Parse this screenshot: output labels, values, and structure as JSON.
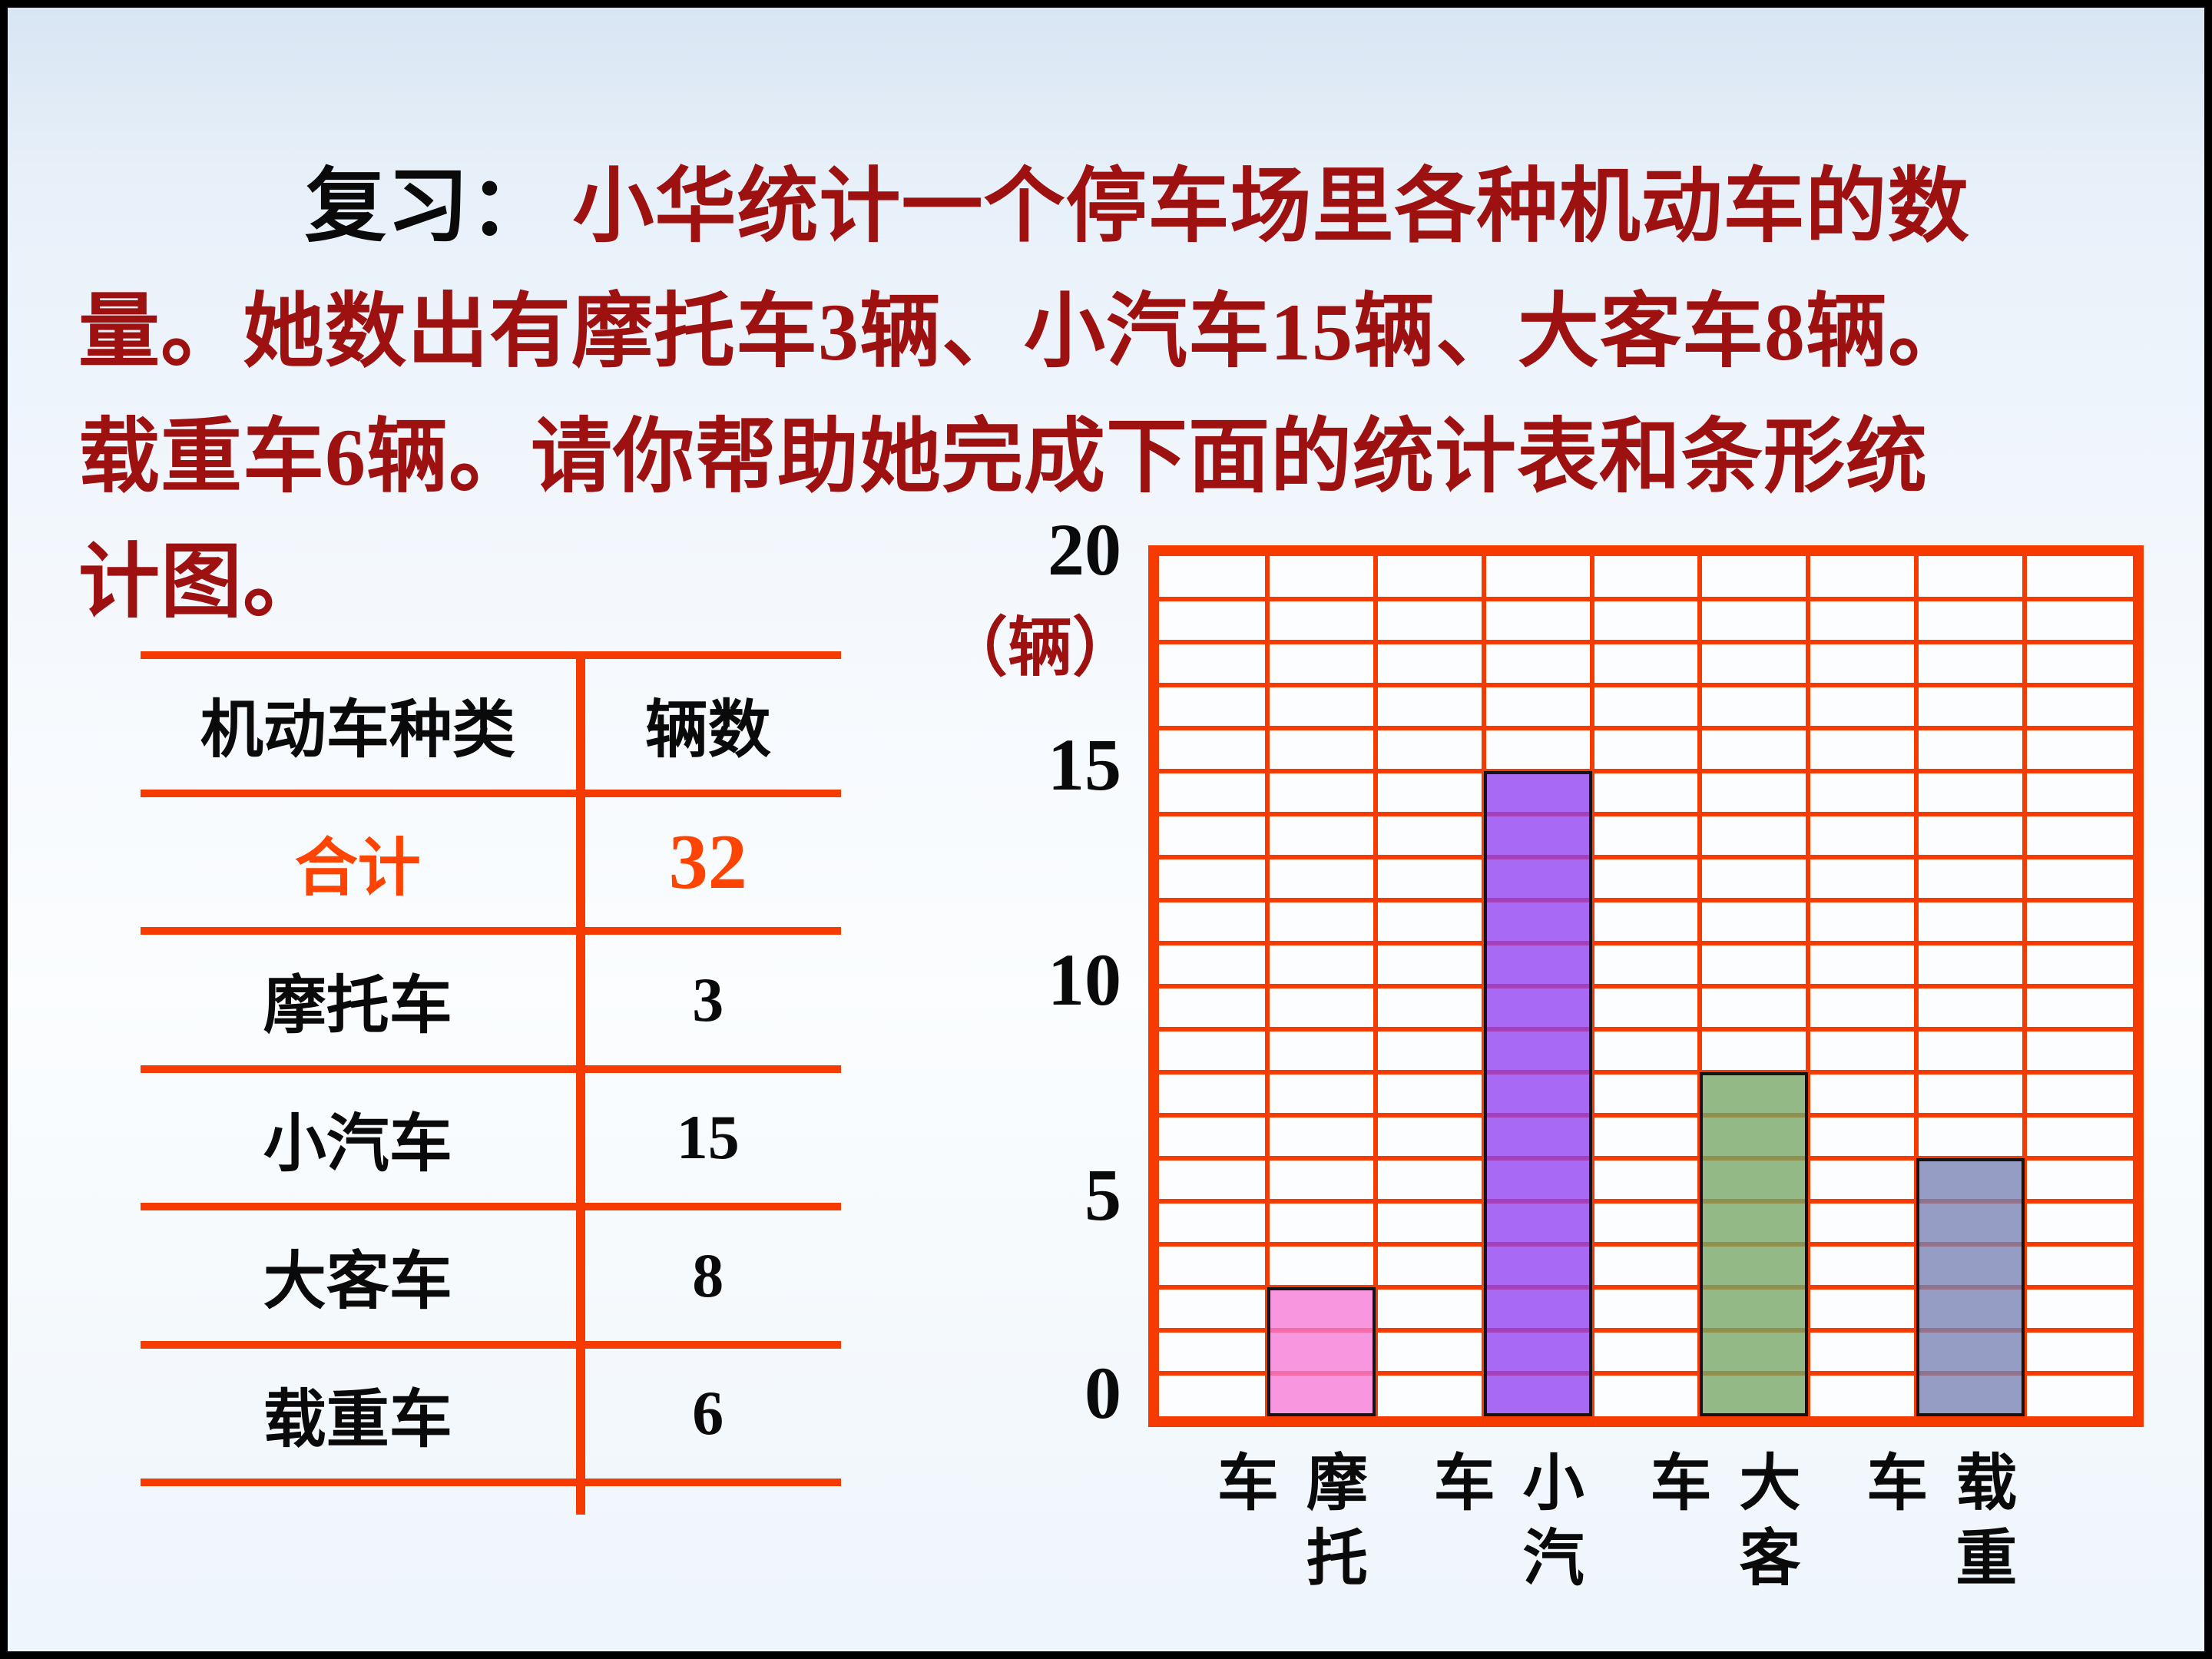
{
  "paragraph": {
    "prefix": "复习：",
    "line1_rest": " 小华统计一个停车场里各种机动车的数",
    "line2": "量。她数出有摩托车3辆、小汽车15辆、大客车8辆。",
    "line3": "载重车6辆。请你帮助她完成下面的统计表和条形统",
    "line4": "计图。"
  },
  "table": {
    "headers": [
      "机动车种类",
      "辆数"
    ],
    "rows": [
      {
        "label": "合计",
        "value": "32",
        "highlight": true
      },
      {
        "label": "摩托车",
        "value": "3",
        "highlight": false
      },
      {
        "label": "小汽车",
        "value": "15",
        "highlight": false
      },
      {
        "label": "大客车",
        "value": "8",
        "highlight": false
      },
      {
        "label": "载重车",
        "value": "6",
        "highlight": false
      }
    ]
  },
  "chart_data": {
    "type": "bar",
    "title": "",
    "unit_label": "（辆）",
    "categories": [
      "摩托车",
      "小汽车",
      "大客车",
      "载重车"
    ],
    "values": [
      3,
      15,
      8,
      6
    ],
    "bar_colors": [
      "#f778d7",
      "#9040ee",
      "#74a564",
      "#7882b4"
    ],
    "bar_alpha": 0.78,
    "ylabel": "（辆）",
    "xlabel": "",
    "ylim": [
      0,
      20
    ],
    "yticks": [
      0,
      5,
      10,
      15,
      20
    ],
    "grid": {
      "rows": 20,
      "cols": 9,
      "bar_col_indices": [
        1,
        3,
        5,
        7
      ],
      "on": true
    },
    "grid_color": "#f53b00",
    "legend_position": "none"
  },
  "colors": {
    "dark_red_text": "#9e1111",
    "orange_line": "#f53b00",
    "total_highlight": "#ff4300",
    "black_text": "#0a0a0a"
  }
}
